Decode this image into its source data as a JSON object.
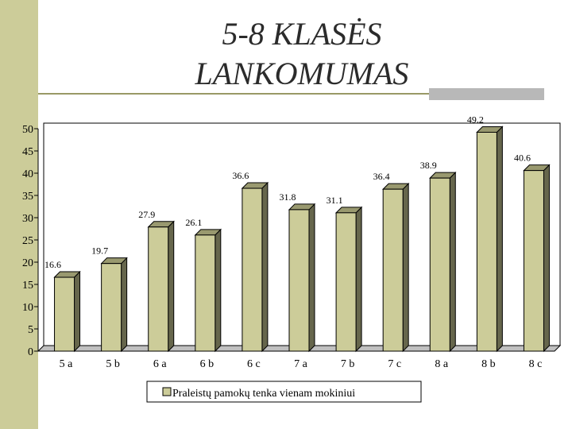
{
  "chart_data": {
    "type": "bar",
    "title": "5-8 KLASĖS LANKOMUMAS",
    "categories": [
      "5 a",
      "5 b",
      "6 a",
      "6 b",
      "6 c",
      "7 a",
      "7 b",
      "7 c",
      "8 a",
      "8 b",
      "8 c"
    ],
    "series": [
      {
        "name": "Praleistų pamokų tenka vienam mokiniui",
        "color": "#cccc99",
        "values": [
          16.6,
          19.7,
          27.9,
          26.1,
          36.6,
          31.8,
          31.1,
          36.4,
          38.9,
          49.2,
          40.6
        ]
      }
    ],
    "ylim": [
      0,
      50
    ],
    "yticks": [
      0,
      5,
      10,
      15,
      20,
      25,
      30,
      35,
      40,
      45,
      50
    ],
    "grid": false,
    "legend": "bottom"
  }
}
